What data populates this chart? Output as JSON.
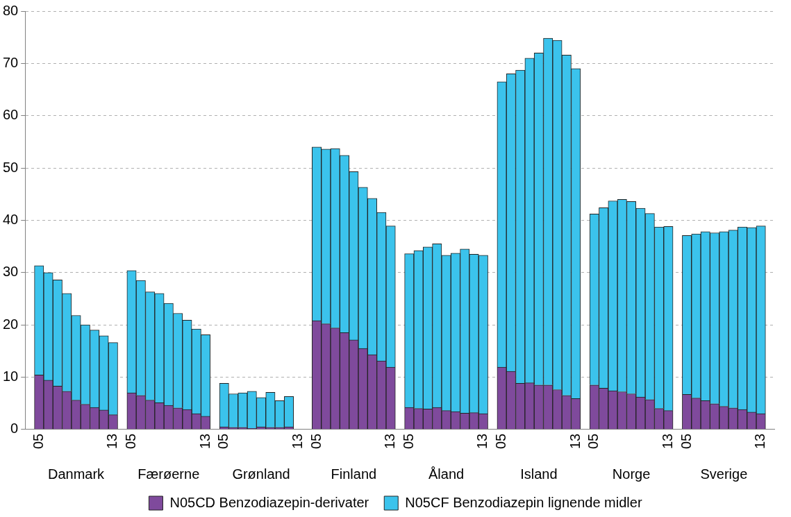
{
  "chart_data": {
    "type": "bar",
    "stacked": true,
    "categories": [
      null,
      "05",
      null,
      null,
      null,
      null,
      null,
      null,
      null,
      "13",
      null,
      "05",
      null,
      null,
      null,
      null,
      null,
      null,
      null,
      "13",
      null,
      "05",
      null,
      null,
      null,
      null,
      null,
      null,
      null,
      "13",
      null,
      "05",
      null,
      null,
      null,
      null,
      null,
      null,
      null,
      "13",
      null,
      "05",
      null,
      null,
      null,
      null,
      null,
      null,
      null,
      "13",
      null,
      "05",
      null,
      null,
      null,
      null,
      null,
      null,
      null,
      "13",
      null,
      "05",
      null,
      null,
      null,
      null,
      null,
      null,
      null,
      "13",
      null,
      "05",
      null,
      null,
      null,
      null,
      null,
      null,
      null,
      "13",
      null
    ],
    "series": [
      {
        "name": "N05CD Benzodiazepin-derivater",
        "color": "#7f4a9c",
        "values": [
          null,
          10.4,
          9.4,
          8.3,
          7.3,
          5.6,
          4.8,
          4.2,
          3.7,
          2.8,
          null,
          7.0,
          6.5,
          5.6,
          5.1,
          4.6,
          4.1,
          3.8,
          3.0,
          2.5,
          null,
          0.5,
          0.4,
          0.4,
          0.2,
          0.5,
          0.4,
          0.4,
          0.5,
          null,
          null,
          20.8,
          20.2,
          19.4,
          18.5,
          17.1,
          15.5,
          14.3,
          13.1,
          11.9,
          null,
          4.2,
          4.0,
          3.9,
          4.2,
          3.6,
          3.4,
          3.1,
          3.2,
          3.0,
          null,
          11.9,
          11.1,
          8.8,
          8.9,
          8.5,
          8.5,
          7.6,
          6.5,
          5.9,
          null,
          8.5,
          7.9,
          7.4,
          7.2,
          6.8,
          6.2,
          5.7,
          4.0,
          3.6,
          null,
          6.7,
          6.0,
          5.5,
          4.9,
          4.4,
          4.1,
          3.8,
          3.3,
          3.0,
          null
        ]
      },
      {
        "name": "N05CF Benzodiazepin lignende midler",
        "color": "#3bc3ec",
        "values": [
          null,
          20.9,
          20.6,
          20.3,
          18.7,
          16.2,
          15.2,
          14.8,
          14.2,
          13.8,
          null,
          23.4,
          22.0,
          20.7,
          20.9,
          19.5,
          18.1,
          17.1,
          16.2,
          15.6,
          null,
          8.3,
          6.4,
          6.6,
          7.1,
          5.6,
          6.7,
          5.1,
          5.8,
          null,
          null,
          33.2,
          33.4,
          34.3,
          33.9,
          32.2,
          30.8,
          29.9,
          28.4,
          27.0,
          null,
          29.4,
          30.2,
          31.0,
          31.3,
          29.7,
          30.3,
          31.4,
          30.3,
          30.3,
          null,
          54.6,
          56.9,
          59.9,
          62.1,
          63.5,
          66.3,
          66.8,
          65.1,
          63.1,
          null,
          32.7,
          34.5,
          36.3,
          36.8,
          36.8,
          36.1,
          35.6,
          34.7,
          35.2,
          null,
          30.4,
          31.4,
          32.3,
          32.7,
          33.4,
          34.0,
          34.9,
          35.3,
          35.9,
          null
        ]
      }
    ],
    "annotations": [
      "Danmark",
      "Færøerne",
      "Grønland",
      "Finland",
      "Åland",
      "Island",
      "Norge",
      "Sverige"
    ],
    "ylim": [
      0,
      80
    ],
    "yticks": [
      0,
      10,
      20,
      30,
      40,
      50,
      60,
      70,
      80
    ],
    "grid": "y",
    "legend": "bottom"
  }
}
